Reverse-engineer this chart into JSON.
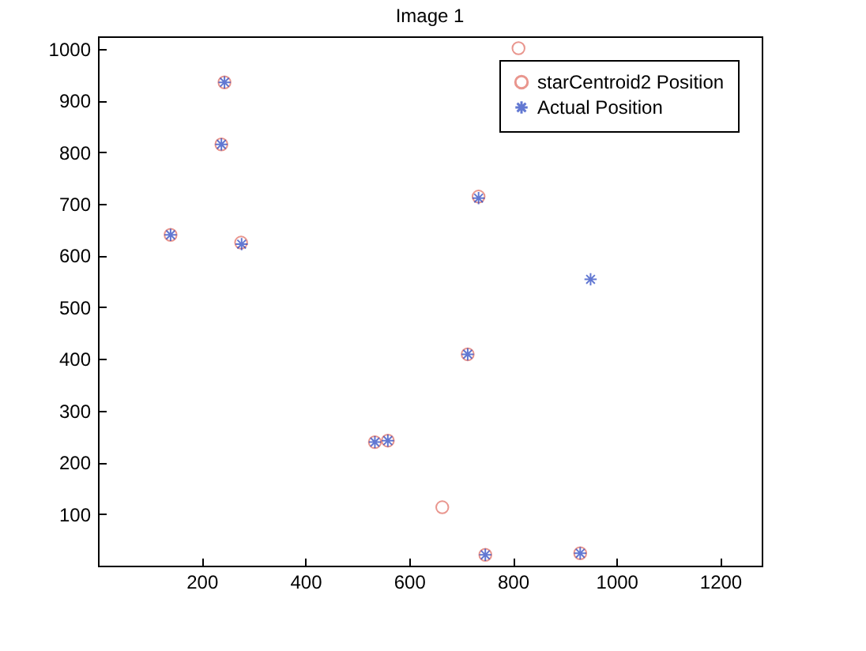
{
  "chart_data": {
    "type": "scatter",
    "title": "Image 1",
    "xlim": [
      0,
      1280
    ],
    "xticks": [
      200,
      400,
      600,
      800,
      1000,
      1200
    ],
    "ylim": [
      0,
      1024
    ],
    "yticks": [
      100,
      200,
      300,
      400,
      500,
      600,
      700,
      800,
      900,
      1000
    ],
    "grid": false,
    "legend": "top right",
    "series": [
      {
        "name": "starCentroid2 Position",
        "color": "#e06a5f",
        "marker": "circle",
        "x": [
          244,
          238,
          140,
          276,
          734,
          811,
          713,
          534,
          559,
          664,
          747,
          930
        ],
        "values": [
          935,
          815,
          640,
          625,
          714,
          1001,
          409,
          239,
          242,
          113,
          21,
          24
        ]
      },
      {
        "name": "Actual Position",
        "color": "#2040c0",
        "marker": "cross",
        "x": [
          244,
          238,
          140,
          277,
          734,
          950,
          713,
          534,
          559,
          747,
          930
        ],
        "values": [
          935,
          815,
          640,
          622,
          711,
          554,
          409,
          239,
          242,
          21,
          24
        ]
      }
    ]
  }
}
